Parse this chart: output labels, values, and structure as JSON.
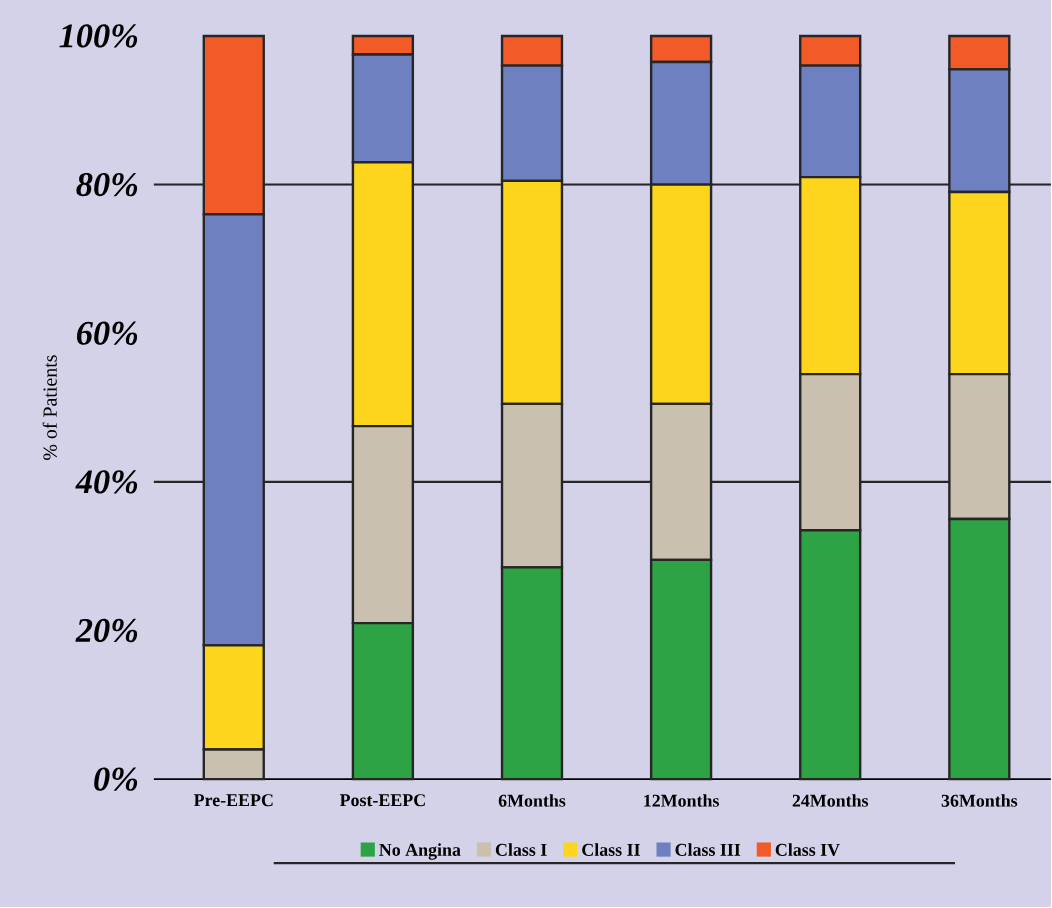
{
  "chart_data": {
    "type": "bar",
    "stacked": true,
    "ylabel": "% of Patients",
    "categories": [
      "Pre-EEPC",
      "Post-EEPC",
      "6Months",
      "12Months",
      "24Months",
      "36Months"
    ],
    "series": [
      {
        "name": "No Angina",
        "color": "#2ea345",
        "values": [
          0,
          21,
          28.5,
          29.5,
          33.5,
          35
        ]
      },
      {
        "name": "Class I",
        "color": "#c9c0b0",
        "values": [
          4,
          26.5,
          22,
          21,
          21,
          19.5
        ]
      },
      {
        "name": "Class II",
        "color": "#fdd51c",
        "values": [
          14,
          35.5,
          30,
          29.5,
          26.5,
          24.5
        ]
      },
      {
        "name": "Class III",
        "color": "#6e80c0",
        "values": [
          58,
          14.5,
          15.5,
          16.5,
          15,
          16.5
        ]
      },
      {
        "name": "Class IV",
        "color": "#f25a28",
        "values": [
          24,
          2.5,
          4,
          3.5,
          4,
          4.5
        ]
      }
    ],
    "ylim": [
      0,
      100
    ],
    "yticks": [
      {
        "value": 0,
        "label": "0%"
      },
      {
        "value": 20,
        "label": "20%"
      },
      {
        "value": 40,
        "label": "40%"
      },
      {
        "value": 60,
        "label": "60%"
      },
      {
        "value": 80,
        "label": "80%"
      },
      {
        "value": 100,
        "label": "100%"
      }
    ],
    "ref_lines": [
      {
        "axis": "y",
        "value": 40
      },
      {
        "axis": "y",
        "value": 80
      }
    ],
    "legend": "bottom"
  }
}
